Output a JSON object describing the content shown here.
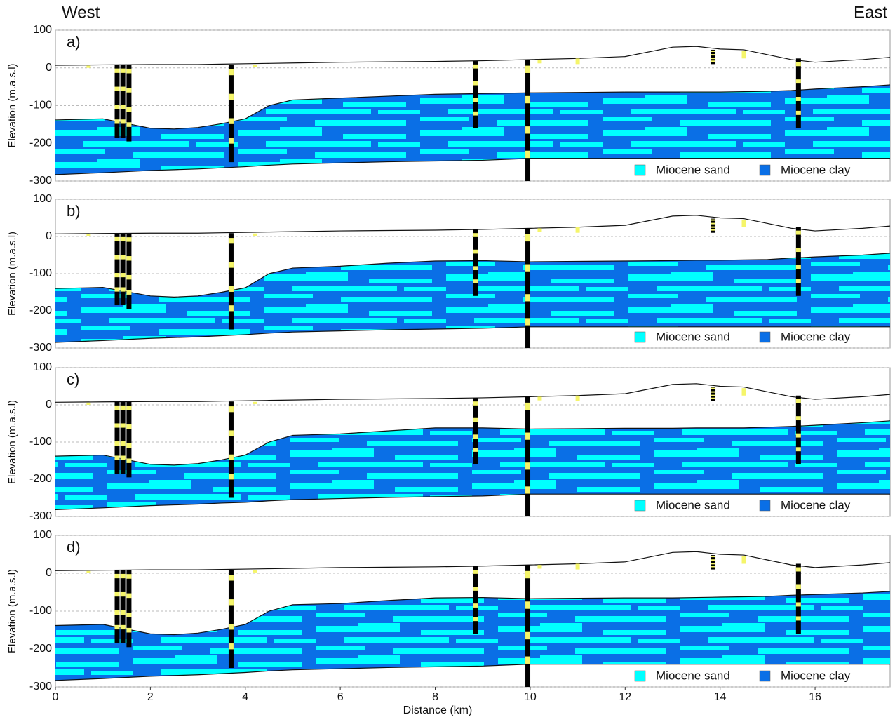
{
  "header": {
    "west": "West",
    "east": "East"
  },
  "chart_data": [
    {
      "type": "cross-section",
      "label": "a)",
      "ylabel": "Elevation (m.a.s.l)",
      "ylim": [
        -300,
        100
      ],
      "yticks": [
        -300,
        -200,
        -100,
        0,
        100
      ],
      "xlim": [
        0,
        17.58
      ],
      "grid": true,
      "x": [
        0,
        1,
        2,
        2.5,
        3,
        3.5,
        4,
        4.5,
        5,
        6,
        7,
        8,
        9,
        10,
        11,
        12,
        13,
        13.5,
        14,
        14.5,
        15,
        15.5,
        16,
        17,
        17.58
      ],
      "surface": [
        7,
        8,
        9,
        9,
        9,
        10,
        11,
        12,
        13,
        15,
        16,
        17,
        19,
        22,
        25,
        30,
        55,
        57,
        50,
        48,
        35,
        22,
        15,
        22,
        28
      ],
      "miocene_top": [
        -138,
        -135,
        -160,
        -162,
        -158,
        -148,
        -135,
        -100,
        -85,
        -80,
        -75,
        -70,
        -68,
        -66,
        -65,
        -64,
        -64,
        -64,
        -64,
        -63,
        -62,
        -60,
        -56,
        -50,
        -45
      ],
      "miocene_base": [
        -283,
        -278,
        -272,
        -270,
        -268,
        -265,
        -262,
        -258,
        -255,
        -252,
        -249,
        -247,
        -245,
        -240,
        -240,
        -240,
        -240,
        -240,
        -240,
        -240,
        -240,
        -240,
        -240,
        -240,
        -240
      ],
      "boreholes": {
        "x": [
          1.3,
          1.42,
          1.55,
          3.7,
          8.85,
          9.95,
          15.65,
          13.85
        ],
        "top": [
          8,
          8,
          8,
          9,
          18,
          22,
          25,
          48
        ],
        "bottom": [
          -185,
          -185,
          -195,
          -250,
          -160,
          -300,
          -160,
          10
        ]
      },
      "shallow": {
        "x": [
          0.7,
          4.2,
          10.2,
          11,
          14.5
        ],
        "top": [
          6,
          8,
          22,
          25,
          45
        ],
        "bottom": [
          0,
          2,
          12,
          10,
          25
        ]
      },
      "legend": [
        {
          "name": "Miocene sand",
          "color": "#00ffff"
        },
        {
          "name": "Miocene clay",
          "color": "#0a6fe6"
        }
      ]
    },
    {
      "type": "cross-section",
      "label": "b)",
      "ylabel": "Elevation (m.a.s.l)",
      "ylim": [
        -300,
        100
      ],
      "yticks": [
        -300,
        -200,
        -100,
        0,
        100
      ],
      "xlim": [
        0,
        17.58
      ],
      "grid": true,
      "x": [
        0,
        1,
        2,
        2.5,
        3,
        3.5,
        4,
        4.5,
        5,
        6,
        7,
        8,
        9,
        10,
        11,
        12,
        13,
        13.5,
        14,
        14.5,
        15,
        15.5,
        16,
        17,
        17.58
      ],
      "surface": [
        7,
        8,
        9,
        9,
        9,
        10,
        11,
        12,
        13,
        15,
        16,
        17,
        19,
        22,
        25,
        30,
        55,
        57,
        50,
        48,
        35,
        22,
        15,
        22,
        28
      ],
      "miocene_top": [
        -140,
        -137,
        -160,
        -163,
        -160,
        -150,
        -138,
        -100,
        -85,
        -80,
        -72,
        -66,
        -65,
        -68,
        -67,
        -66,
        -65,
        -64,
        -64,
        -63,
        -62,
        -58,
        -55,
        -50,
        -45
      ],
      "miocene_base": [
        -285,
        -280,
        -274,
        -272,
        -270,
        -267,
        -264,
        -260,
        -257,
        -254,
        -251,
        -249,
        -247,
        -243,
        -243,
        -243,
        -243,
        -243,
        -243,
        -243,
        -243,
        -243,
        -243,
        -243,
        -243
      ],
      "boreholes": {
        "x": [
          1.3,
          1.42,
          1.55,
          3.7,
          8.85,
          9.95,
          15.65,
          13.85
        ],
        "top": [
          8,
          8,
          8,
          9,
          18,
          22,
          25,
          48
        ],
        "bottom": [
          -185,
          -185,
          -195,
          -250,
          -160,
          -300,
          -160,
          10
        ]
      },
      "shallow": {
        "x": [
          0.7,
          4.2,
          10.2,
          11,
          14.5
        ],
        "top": [
          6,
          8,
          22,
          25,
          45
        ],
        "bottom": [
          0,
          2,
          12,
          10,
          25
        ]
      },
      "legend": [
        {
          "name": "Miocene sand",
          "color": "#00ffff"
        },
        {
          "name": "Miocene clay",
          "color": "#0a6fe6"
        }
      ]
    },
    {
      "type": "cross-section",
      "label": "c)",
      "ylabel": "Elevation (m.a.s.l)",
      "ylim": [
        -300,
        100
      ],
      "yticks": [
        -300,
        -200,
        -100,
        0,
        100
      ],
      "xlim": [
        0,
        17.58
      ],
      "grid": true,
      "x": [
        0,
        1,
        2,
        2.5,
        3,
        3.5,
        4,
        4.5,
        5,
        6,
        7,
        8,
        9,
        10,
        11,
        12,
        13,
        13.5,
        14,
        14.5,
        15,
        15.5,
        16,
        17,
        17.58
      ],
      "surface": [
        7,
        8,
        9,
        9,
        9,
        10,
        11,
        12,
        13,
        15,
        16,
        17,
        19,
        22,
        25,
        30,
        55,
        57,
        50,
        48,
        35,
        22,
        15,
        22,
        28
      ],
      "miocene_top": [
        -138,
        -135,
        -160,
        -162,
        -158,
        -148,
        -135,
        -100,
        -82,
        -78,
        -70,
        -62,
        -62,
        -65,
        -64,
        -63,
        -63,
        -62,
        -62,
        -62,
        -60,
        -58,
        -55,
        -48,
        -43
      ],
      "miocene_base": [
        -282,
        -277,
        -271,
        -269,
        -267,
        -264,
        -262,
        -258,
        -255,
        -252,
        -249,
        -247,
        -245,
        -240,
        -240,
        -240,
        -240,
        -240,
        -240,
        -240,
        -240,
        -240,
        -240,
        -240,
        -240
      ],
      "boreholes": {
        "x": [
          1.3,
          1.42,
          1.55,
          3.7,
          8.85,
          9.95,
          15.65,
          13.85
        ],
        "top": [
          8,
          8,
          8,
          9,
          18,
          22,
          25,
          48
        ],
        "bottom": [
          -185,
          -185,
          -195,
          -250,
          -160,
          -300,
          -160,
          10
        ]
      },
      "shallow": {
        "x": [
          0.7,
          4.2,
          10.2,
          11,
          14.5
        ],
        "top": [
          6,
          8,
          22,
          25,
          45
        ],
        "bottom": [
          0,
          2,
          12,
          10,
          25
        ]
      },
      "legend": [
        {
          "name": "Miocene sand",
          "color": "#00ffff"
        },
        {
          "name": "Miocene clay",
          "color": "#0a6fe6"
        }
      ]
    },
    {
      "type": "cross-section",
      "label": "d)",
      "ylabel": "Elevation (m.a.s.l)",
      "ylim": [
        -300,
        100
      ],
      "yticks": [
        -300,
        -200,
        -100,
        0,
        100
      ],
      "xlim": [
        0,
        17.58
      ],
      "grid": true,
      "xticks": [
        0,
        2,
        4,
        6,
        8,
        10,
        12,
        14,
        16
      ],
      "xlabel": "Distance (km)",
      "x": [
        0,
        1,
        2,
        2.5,
        3,
        3.5,
        4,
        4.5,
        5,
        6,
        7,
        8,
        9,
        10,
        11,
        12,
        13,
        13.5,
        14,
        14.5,
        15,
        15.5,
        16,
        17,
        17.58
      ],
      "surface": [
        7,
        8,
        9,
        9,
        9,
        10,
        11,
        12,
        13,
        15,
        16,
        17,
        19,
        22,
        25,
        30,
        55,
        57,
        50,
        48,
        35,
        22,
        15,
        22,
        28
      ],
      "miocene_top": [
        -138,
        -135,
        -160,
        -162,
        -158,
        -148,
        -135,
        -100,
        -83,
        -80,
        -72,
        -65,
        -64,
        -67,
        -66,
        -65,
        -65,
        -64,
        -63,
        -62,
        -61,
        -58,
        -56,
        -52,
        -48
      ],
      "miocene_base": [
        -283,
        -278,
        -272,
        -270,
        -268,
        -265,
        -262,
        -258,
        -255,
        -252,
        -249,
        -247,
        -245,
        -240,
        -240,
        -240,
        -240,
        -240,
        -240,
        -240,
        -240,
        -240,
        -240,
        -240,
        -240
      ],
      "boreholes": {
        "x": [
          1.3,
          1.42,
          1.55,
          3.7,
          8.85,
          9.95,
          15.65,
          13.85
        ],
        "top": [
          8,
          8,
          8,
          9,
          18,
          22,
          25,
          48
        ],
        "bottom": [
          -185,
          -185,
          -195,
          -250,
          -160,
          -300,
          -160,
          10
        ]
      },
      "shallow": {
        "x": [
          0.7,
          4.2,
          10.2,
          11,
          14.5
        ],
        "top": [
          6,
          8,
          22,
          25,
          45
        ],
        "bottom": [
          0,
          2,
          12,
          10,
          25
        ]
      },
      "legend": [
        {
          "name": "Miocene sand",
          "color": "#00ffff"
        },
        {
          "name": "Miocene clay",
          "color": "#0a6fe6"
        }
      ]
    }
  ]
}
